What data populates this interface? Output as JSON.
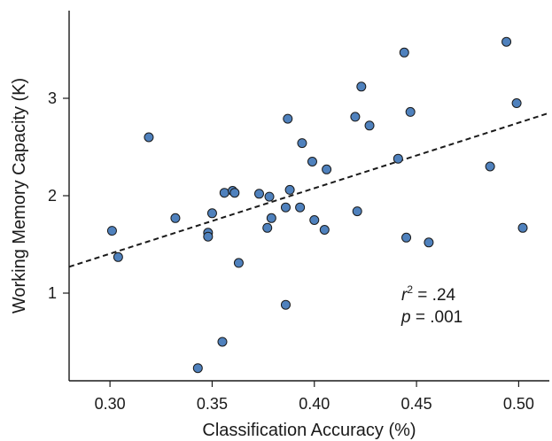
{
  "chart_data": {
    "type": "scatter",
    "title": "",
    "xlabel": "Classification Accuracy (%)",
    "ylabel": "Working Memory Capacity (K)",
    "xlim": [
      0.28,
      0.515
    ],
    "ylim": [
      0.1,
      3.9
    ],
    "x_ticks": [
      0.3,
      0.35,
      0.4,
      0.45,
      0.5
    ],
    "x_tick_labels": [
      "0.30",
      "0.35",
      "0.40",
      "0.45",
      "0.50"
    ],
    "y_ticks": [
      1,
      2,
      3
    ],
    "y_tick_labels": [
      "1",
      "2",
      "3"
    ],
    "grid": false,
    "legend": "none",
    "colors": {
      "point_fill": "#4f81bd",
      "point_stroke": "#1a1a1a",
      "fit_line": "#1a1a1a",
      "axis": "#1a1a1a"
    },
    "fit_line": {
      "style": "dashed",
      "start": {
        "x": 0.28,
        "y": 1.27
      },
      "end": {
        "x": 0.515,
        "y": 2.85
      }
    },
    "annotation": {
      "r_var": "r",
      "r_sup": "2",
      "r_rest": " = .24",
      "p_var": "p",
      "p_rest": " = .001"
    },
    "points": [
      {
        "x": 0.301,
        "y": 1.64
      },
      {
        "x": 0.304,
        "y": 1.37
      },
      {
        "x": 0.319,
        "y": 2.6
      },
      {
        "x": 0.332,
        "y": 1.77
      },
      {
        "x": 0.343,
        "y": 0.23
      },
      {
        "x": 0.348,
        "y": 1.62
      },
      {
        "x": 0.348,
        "y": 1.58
      },
      {
        "x": 0.35,
        "y": 1.82
      },
      {
        "x": 0.355,
        "y": 0.5
      },
      {
        "x": 0.356,
        "y": 2.03
      },
      {
        "x": 0.36,
        "y": 2.05
      },
      {
        "x": 0.361,
        "y": 2.03
      },
      {
        "x": 0.363,
        "y": 1.31
      },
      {
        "x": 0.373,
        "y": 2.02
      },
      {
        "x": 0.377,
        "y": 1.67
      },
      {
        "x": 0.378,
        "y": 1.99
      },
      {
        "x": 0.379,
        "y": 1.77
      },
      {
        "x": 0.386,
        "y": 0.88
      },
      {
        "x": 0.386,
        "y": 1.88
      },
      {
        "x": 0.387,
        "y": 2.79
      },
      {
        "x": 0.388,
        "y": 2.06
      },
      {
        "x": 0.393,
        "y": 1.88
      },
      {
        "x": 0.394,
        "y": 2.54
      },
      {
        "x": 0.399,
        "y": 2.35
      },
      {
        "x": 0.4,
        "y": 1.75
      },
      {
        "x": 0.405,
        "y": 1.65
      },
      {
        "x": 0.406,
        "y": 2.27
      },
      {
        "x": 0.42,
        "y": 2.81
      },
      {
        "x": 0.421,
        "y": 1.84
      },
      {
        "x": 0.423,
        "y": 3.12
      },
      {
        "x": 0.427,
        "y": 2.72
      },
      {
        "x": 0.441,
        "y": 2.38
      },
      {
        "x": 0.444,
        "y": 3.47
      },
      {
        "x": 0.445,
        "y": 1.57
      },
      {
        "x": 0.447,
        "y": 2.86
      },
      {
        "x": 0.456,
        "y": 1.52
      },
      {
        "x": 0.486,
        "y": 2.3
      },
      {
        "x": 0.494,
        "y": 3.58
      },
      {
        "x": 0.499,
        "y": 2.95
      },
      {
        "x": 0.502,
        "y": 1.67
      }
    ]
  }
}
